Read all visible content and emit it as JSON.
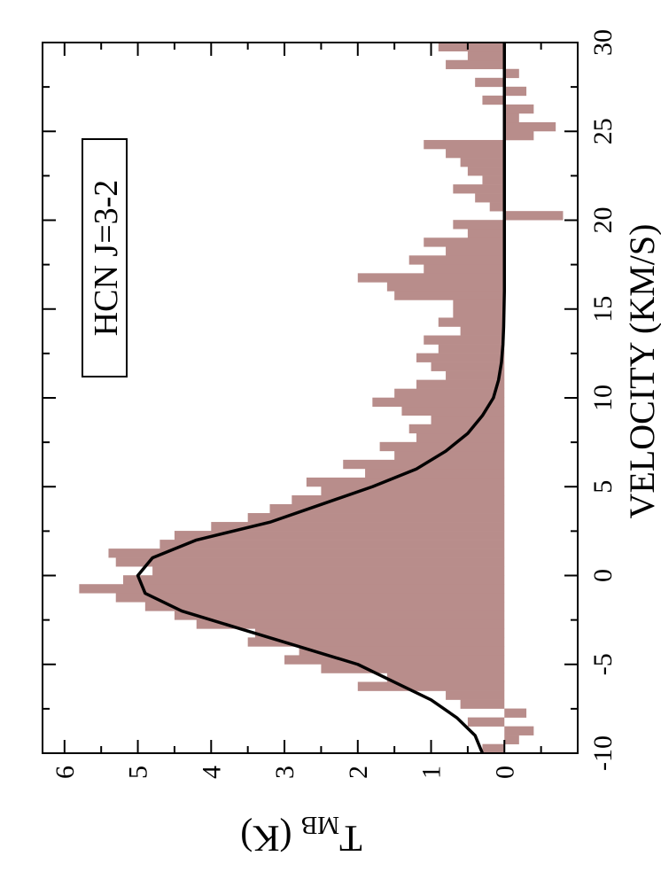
{
  "chart_data": {
    "type": "histogram",
    "xlabel": "VELOCITY (KM/S)",
    "ylabel": {
      "symbol": "T",
      "subscript": "MB",
      "unit": "(K)"
    },
    "annotation": "HCN J=3-2",
    "xlim": [
      -10,
      30
    ],
    "ylim": [
      -1,
      6.3
    ],
    "xticks": [
      -10,
      -5,
      0,
      5,
      10,
      15,
      20,
      25,
      30
    ],
    "xminorticks": [
      -7.5,
      -2.5,
      2.5,
      7.5,
      12.5,
      17.5,
      22.5,
      27.5
    ],
    "yticks": [
      0,
      1,
      2,
      3,
      4,
      5,
      6
    ],
    "yminorticks": [
      -0.5,
      0.5,
      1.5,
      2.5,
      3.5,
      4.5,
      5.5
    ],
    "color": "#b88d8b",
    "bins": [
      -10,
      -9.5,
      -9,
      -8.5,
      -8,
      -7.5,
      -7,
      -6.5,
      -6,
      -5.5,
      -5,
      -4.5,
      -4,
      -3.5,
      -3,
      -2.5,
      -2,
      -1.5,
      -1,
      -0.5,
      0,
      0.5,
      1,
      1.5,
      2,
      2.5,
      3,
      3.5,
      4,
      4.5,
      5,
      5.5,
      6,
      6.5,
      7,
      7.5,
      8,
      8.5,
      9,
      9.5,
      10,
      10.5,
      11,
      11.5,
      12,
      12.5,
      13,
      13.5,
      14,
      14.5,
      15,
      15.5,
      16,
      16.5,
      17,
      17.5,
      18,
      18.5,
      19,
      19.5,
      20,
      20.5,
      21,
      21.5,
      22,
      22.5,
      23,
      23.5,
      24,
      24.5,
      25,
      25.5,
      26,
      26.5,
      27,
      27.5,
      28,
      28.5,
      29,
      29.5,
      30
    ],
    "values": [
      0.3,
      -0.2,
      -0.4,
      0.5,
      -0.3,
      0.6,
      0.8,
      2.0,
      1.6,
      2.5,
      3.0,
      2.8,
      3.5,
      3.4,
      4.2,
      4.5,
      4.9,
      5.3,
      5.8,
      5.2,
      4.8,
      5.3,
      5.4,
      4.7,
      4.5,
      4.0,
      3.5,
      3.2,
      2.9,
      2.5,
      2.7,
      1.9,
      2.2,
      1.5,
      1.7,
      1.2,
      1.3,
      1.0,
      1.4,
      1.8,
      1.5,
      1.2,
      0.8,
      1.0,
      1.2,
      0.9,
      1.1,
      0.6,
      0.9,
      0.7,
      0.7,
      1.5,
      1.6,
      2.0,
      1.1,
      1.3,
      0.8,
      1.1,
      0.5,
      0.7,
      -0.8,
      0.2,
      0.4,
      0.7,
      0.3,
      0.5,
      0.6,
      0.8,
      1.1,
      -0.4,
      -0.7,
      -0.2,
      -0.4,
      0.3,
      -0.3,
      0.4,
      -0.2,
      0.8,
      0.5,
      0.9
    ],
    "fit": {
      "color": "#000000",
      "x": [
        -10,
        -9,
        -8,
        -7,
        -6,
        -5,
        -4,
        -3,
        -2,
        -1,
        0,
        1,
        2,
        3,
        4,
        5,
        6,
        7,
        8,
        9,
        10,
        11,
        12,
        13,
        14,
        16,
        18,
        20,
        22,
        24,
        26,
        28,
        30
      ],
      "values": [
        0.3,
        0.4,
        0.65,
        1.0,
        1.5,
        2.0,
        2.8,
        3.6,
        4.4,
        4.9,
        5.0,
        4.8,
        4.2,
        3.2,
        2.5,
        1.8,
        1.2,
        0.8,
        0.5,
        0.3,
        0.15,
        0.08,
        0.04,
        0.02,
        0.01,
        0,
        0,
        0,
        0,
        0,
        0,
        0,
        0
      ]
    }
  }
}
